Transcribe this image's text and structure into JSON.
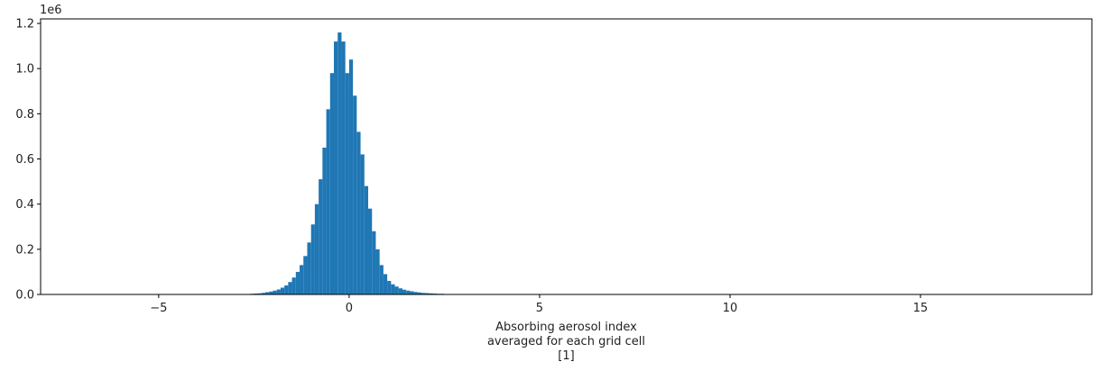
{
  "chart_data": {
    "type": "bar",
    "subtype": "histogram",
    "title": "",
    "xlabel_lines": [
      "Absorbing aerosol index",
      "averaged for each grid cell",
      "[1]"
    ],
    "ylabel": "",
    "y_offset_label": "1e6",
    "xlim": [
      -8.1,
      19.5
    ],
    "ylim": [
      0,
      1.22
    ],
    "x_ticks": [
      -5,
      0,
      5,
      10,
      15
    ],
    "x_tick_labels": [
      "−5",
      "0",
      "5",
      "10",
      "15"
    ],
    "y_ticks": [
      0.0,
      0.2,
      0.4,
      0.6,
      0.8,
      1.0,
      1.2
    ],
    "y_tick_labels": [
      "0.0",
      "0.2",
      "0.4",
      "0.6",
      "0.8",
      "1.0",
      "1.2"
    ],
    "bar_color": "#1f77b4",
    "grid": false,
    "legend": false,
    "bin_width": 0.1,
    "bins_start": [
      -2.7,
      -2.6,
      -2.5,
      -2.4,
      -2.3,
      -2.2,
      -2.1,
      -2.0,
      -1.9,
      -1.8,
      -1.7,
      -1.6,
      -1.5,
      -1.4,
      -1.3,
      -1.2,
      -1.1,
      -1.0,
      -0.9,
      -0.8,
      -0.7,
      -0.6,
      -0.5,
      -0.4,
      -0.3,
      -0.2,
      -0.1,
      0.0,
      0.1,
      0.2,
      0.3,
      0.4,
      0.5,
      0.6,
      0.7,
      0.8,
      0.9,
      1.0,
      1.1,
      1.2,
      1.3,
      1.4,
      1.5,
      1.6,
      1.7,
      1.8,
      1.9,
      2.0,
      2.1,
      2.2,
      2.3,
      2.4,
      2.5,
      2.6,
      2.7,
      2.8
    ],
    "counts": [
      0.002,
      0.003,
      0.004,
      0.005,
      0.007,
      0.01,
      0.013,
      0.017,
      0.022,
      0.03,
      0.04,
      0.055,
      0.075,
      0.1,
      0.13,
      0.17,
      0.23,
      0.31,
      0.4,
      0.51,
      0.65,
      0.82,
      0.98,
      1.12,
      1.16,
      1.12,
      0.98,
      1.04,
      0.88,
      0.72,
      0.62,
      0.48,
      0.38,
      0.28,
      0.2,
      0.13,
      0.09,
      0.06,
      0.045,
      0.035,
      0.027,
      0.021,
      0.017,
      0.014,
      0.011,
      0.009,
      0.007,
      0.006,
      0.005,
      0.004,
      0.003,
      0.003,
      0.002,
      0.002,
      0.001,
      0.001
    ]
  }
}
